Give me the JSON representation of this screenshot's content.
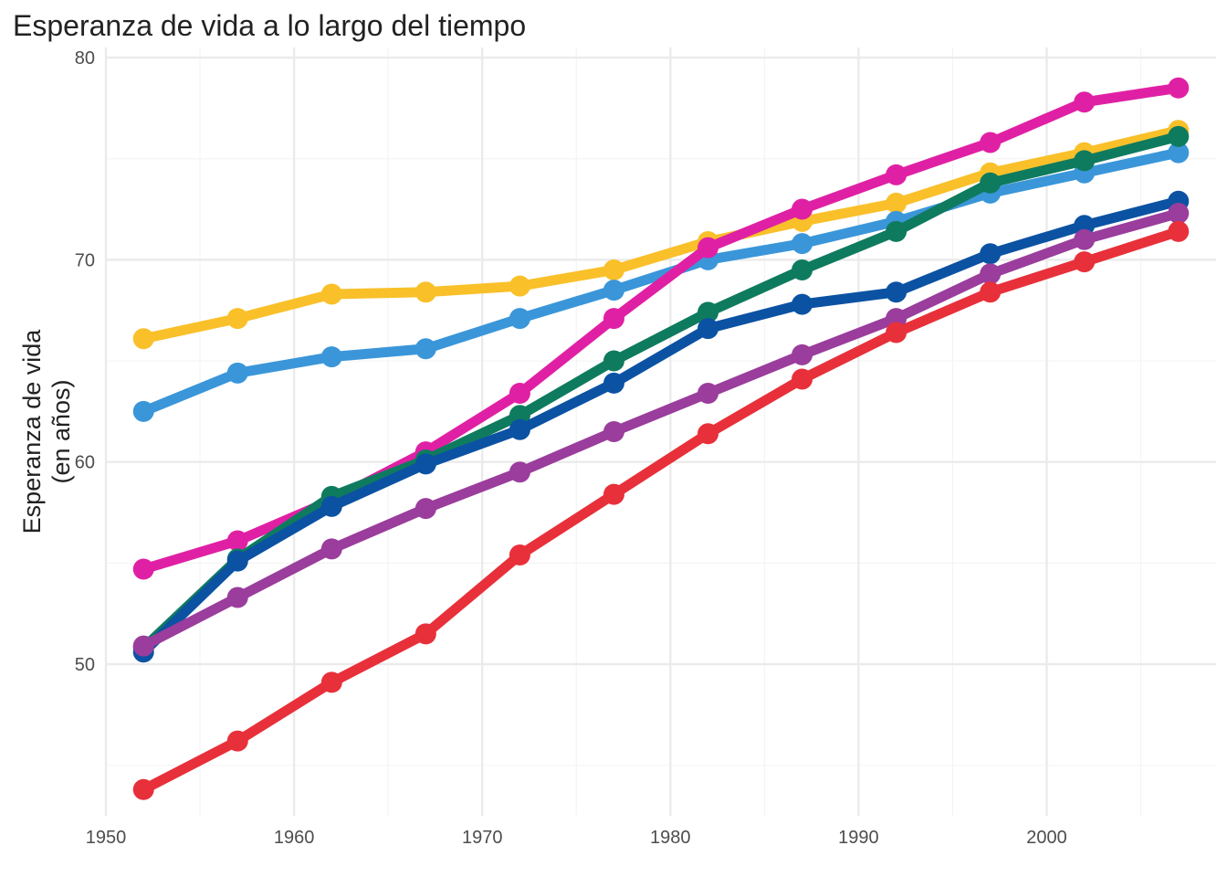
{
  "chart_data": {
    "type": "line",
    "title": "Esperanza de vida a lo largo del tiempo",
    "xlabel": "",
    "ylabel": [
      "Esperanza de vida",
      "(en años)"
    ],
    "x": [
      1952,
      1957,
      1962,
      1967,
      1972,
      1977,
      1982,
      1987,
      1992,
      1997,
      2002,
      2007
    ],
    "xlim": [
      1950,
      2009
    ],
    "ylim": [
      42.5,
      80.5
    ],
    "xticks": [
      "1950",
      "1960",
      "1970",
      "1980",
      "1990",
      "2000"
    ],
    "yticks": [
      "50",
      "60",
      "70",
      "80"
    ],
    "grid": true,
    "legend": "none",
    "series": [
      {
        "color": "#f9c02a",
        "values": [
          66.1,
          67.1,
          68.3,
          68.4,
          68.7,
          69.5,
          70.9,
          71.9,
          72.8,
          74.3,
          75.3,
          76.4
        ]
      },
      {
        "color": "#3a96d9",
        "values": [
          62.5,
          64.4,
          65.2,
          65.6,
          67.1,
          68.5,
          70.0,
          70.8,
          71.9,
          73.3,
          74.3,
          75.3
        ]
      },
      {
        "color": "#e020a4",
        "values": [
          54.7,
          56.1,
          58.1,
          60.5,
          63.4,
          67.1,
          70.6,
          72.5,
          74.2,
          75.8,
          77.8,
          78.5
        ]
      },
      {
        "color": "#0f7b5e",
        "values": [
          50.8,
          55.2,
          58.3,
          60.1,
          62.3,
          65.0,
          67.4,
          69.5,
          71.4,
          73.8,
          74.9,
          76.1
        ]
      },
      {
        "color": "#0b52a3",
        "values": [
          50.6,
          55.1,
          57.8,
          59.9,
          61.6,
          63.9,
          66.6,
          67.8,
          68.4,
          70.3,
          71.7,
          72.9
        ]
      },
      {
        "color": "#9a3d9c",
        "values": [
          50.9,
          53.3,
          55.7,
          57.7,
          59.5,
          61.5,
          63.4,
          65.3,
          67.1,
          69.3,
          71.0,
          72.3
        ]
      },
      {
        "color": "#e8303a",
        "values": [
          43.8,
          46.2,
          49.1,
          51.5,
          55.4,
          58.4,
          61.4,
          64.1,
          66.4,
          68.4,
          69.9,
          71.4
        ]
      }
    ]
  }
}
